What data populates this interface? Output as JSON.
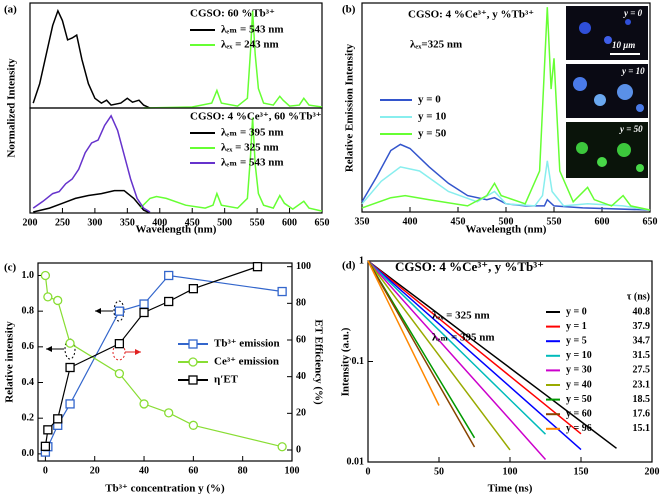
{
  "chart_data": [
    {
      "type": "line",
      "panel": "(a)",
      "title": "CGSO: 60 %Tb³⁺",
      "ylabel": "Normalized Intensity",
      "xlim": [
        200,
        650
      ],
      "ylim": [
        0,
        1.08
      ],
      "legend": "upper right",
      "series": [
        {
          "name": "λₑₘ = 543 nm",
          "color": "#000000",
          "x": [
            205,
            215,
            225,
            235,
            243,
            250,
            258,
            265,
            272,
            280,
            290,
            300,
            310,
            318,
            325,
            340,
            350,
            358,
            368,
            375,
            385
          ],
          "values": [
            0.05,
            0.25,
            0.55,
            0.85,
            1.0,
            0.9,
            0.7,
            0.72,
            0.75,
            0.5,
            0.25,
            0.1,
            0.05,
            0.08,
            0.03,
            0.05,
            0.1,
            0.06,
            0.08,
            0.03,
            0.0
          ]
        },
        {
          "name": "λₑₓ = 243 nm",
          "color": "#66ff33",
          "x": [
            375,
            450,
            480,
            488,
            495,
            520,
            535,
            540,
            543,
            547,
            552,
            560,
            575,
            585,
            590,
            600,
            615,
            622,
            630,
            650
          ],
          "values": [
            0.0,
            0.01,
            0.05,
            0.18,
            0.05,
            0.02,
            0.1,
            0.6,
            1.0,
            0.55,
            0.2,
            0.05,
            0.03,
            0.12,
            0.08,
            0.02,
            0.03,
            0.1,
            0.03,
            0.01
          ]
        }
      ]
    },
    {
      "type": "line",
      "title": "CGSO: 4 %Ce³⁺, 60 %Tb³⁺",
      "xlabel": "Wavelength (nm)",
      "xlim": [
        200,
        650
      ],
      "xticks": [
        200,
        250,
        300,
        350,
        400,
        450,
        500,
        550,
        600,
        650
      ],
      "ylim": [
        0,
        1.08
      ],
      "legend": "upper right",
      "series": [
        {
          "name": "λₑₘ = 395 nm",
          "color": "#000000",
          "x": [
            205,
            230,
            250,
            270,
            290,
            310,
            330,
            345,
            360,
            375,
            385
          ],
          "values": [
            0.01,
            0.05,
            0.1,
            0.15,
            0.18,
            0.2,
            0.23,
            0.23,
            0.15,
            0.03,
            0.0
          ]
        },
        {
          "name": "λₑₓ = 325 nm",
          "color": "#66ff33",
          "x": [
            370,
            385,
            395,
            410,
            440,
            470,
            482,
            488,
            495,
            520,
            535,
            540,
            543,
            547,
            552,
            560,
            575,
            585,
            592,
            605,
            622,
            630,
            650
          ],
          "values": [
            0.05,
            0.15,
            0.17,
            0.15,
            0.08,
            0.05,
            0.08,
            0.2,
            0.08,
            0.05,
            0.15,
            0.6,
            0.98,
            0.5,
            0.2,
            0.08,
            0.05,
            0.18,
            0.1,
            0.04,
            0.12,
            0.05,
            0.02
          ]
        },
        {
          "name": "λₑₘ = 543 nm",
          "color": "#6633cc",
          "x": [
            205,
            220,
            235,
            245,
            255,
            265,
            275,
            285,
            295,
            305,
            315,
            325,
            335,
            345,
            355,
            365,
            375,
            385
          ],
          "values": [
            0.05,
            0.12,
            0.2,
            0.22,
            0.3,
            0.35,
            0.45,
            0.62,
            0.72,
            0.75,
            0.9,
            1.0,
            0.85,
            0.6,
            0.35,
            0.15,
            0.05,
            0.01
          ]
        }
      ]
    },
    {
      "type": "line",
      "panel": "(b)",
      "title": "CGSO: 4 %Ce³⁺, y %Tb³⁺",
      "annotations": [
        "λₑₓ=325 nm"
      ],
      "ylabel": "Relative Emission Intensity",
      "xlabel": "Wavelength (nm)",
      "xlim": [
        350,
        650
      ],
      "xticks": [
        350,
        400,
        450,
        500,
        550,
        600,
        650
      ],
      "ylim": [
        0,
        1.02
      ],
      "legend": "upper left",
      "images": [
        {
          "label": "y = 0",
          "scale": "10 μm"
        },
        {
          "label": "y = 10"
        },
        {
          "label": "y = 50"
        }
      ],
      "series": [
        {
          "name": "y = 0",
          "color": "#3355cc",
          "x": [
            350,
            365,
            380,
            390,
            400,
            420,
            440,
            460,
            480,
            488,
            500,
            520,
            540,
            543,
            550,
            580,
            650
          ],
          "values": [
            0.05,
            0.17,
            0.3,
            0.33,
            0.31,
            0.22,
            0.14,
            0.08,
            0.06,
            0.07,
            0.04,
            0.03,
            0.03,
            0.06,
            0.03,
            0.02,
            0.01
          ]
        },
        {
          "name": "y = 10",
          "color": "#88eeee",
          "x": [
            350,
            370,
            390,
            410,
            440,
            470,
            488,
            500,
            530,
            538,
            543,
            548,
            560,
            585,
            622,
            650
          ],
          "values": [
            0.04,
            0.15,
            0.22,
            0.2,
            0.1,
            0.05,
            0.1,
            0.04,
            0.03,
            0.08,
            0.25,
            0.1,
            0.03,
            0.04,
            0.03,
            0.01
          ]
        },
        {
          "name": "y = 50",
          "color": "#66ff33",
          "x": [
            350,
            380,
            395,
            420,
            460,
            480,
            488,
            495,
            520,
            535,
            540,
            543,
            547,
            550,
            556,
            570,
            585,
            592,
            610,
            622,
            630,
            650
          ],
          "values": [
            0.02,
            0.07,
            0.08,
            0.06,
            0.03,
            0.08,
            0.14,
            0.08,
            0.04,
            0.2,
            0.7,
            1.0,
            0.6,
            0.75,
            0.2,
            0.05,
            0.12,
            0.06,
            0.03,
            0.08,
            0.03,
            0.01
          ]
        }
      ]
    },
    {
      "type": "line",
      "panel": "(c)",
      "xlabel": "Tb³⁺ concentration y (%)",
      "ylabel": "Relative intensity",
      "y2label": "ET Efficiency (%)",
      "xlim": [
        -3,
        100
      ],
      "xticks": [
        0,
        20,
        40,
        60,
        80,
        100
      ],
      "ylim": [
        -0.04,
        1.07
      ],
      "yticks": [
        {
          "value": 0,
          "label": "0.0"
        },
        0.2,
        0.4,
        0.6,
        0.8,
        {
          "value": 1,
          "label": "1.0"
        }
      ],
      "y2lim": [
        -6,
        102
      ],
      "y2ticks": [
        0,
        20,
        40,
        60,
        80,
        100
      ],
      "legend": "center right",
      "series": [
        {
          "name": "Tb³⁺ emission",
          "color": "#3366cc",
          "marker": "square",
          "x": [
            0,
            1,
            5,
            10,
            30,
            40,
            50,
            96
          ],
          "values": [
            0.01,
            0.04,
            0.16,
            0.28,
            0.8,
            0.84,
            1.0,
            0.91
          ]
        },
        {
          "name": "Ce³⁺ emission",
          "color": "#88dd33",
          "marker": "circle",
          "x": [
            0,
            1,
            5,
            10,
            30,
            40,
            50,
            60,
            96
          ],
          "values": [
            1.0,
            0.88,
            0.86,
            0.62,
            0.45,
            0.28,
            0.23,
            0.16,
            0.04
          ]
        },
        {
          "name": "η′ET",
          "color": "#000000",
          "marker": "square",
          "axis": "y2",
          "x": [
            0,
            1,
            5,
            10,
            30,
            40,
            50,
            60,
            86
          ],
          "values": [
            2,
            11,
            17,
            45,
            58,
            75,
            81,
            88,
            100
          ]
        }
      ]
    },
    {
      "type": "line",
      "panel": "(d)",
      "title": "CGSO: 4 %Ce³⁺, y %Tb³⁺",
      "annotations": [
        "λₑₓ = 325 nm",
        "λₑₘ = 395 nm"
      ],
      "xlabel": "Time (ns)",
      "ylabel": "Intensity (a.u.)",
      "yscale": "log",
      "xlim": [
        0,
        200
      ],
      "xticks": [
        0,
        50,
        100,
        150,
        200
      ],
      "ylim": [
        0.01,
        1
      ],
      "yticks": [
        0.01,
        0.1,
        1
      ],
      "legend": "upper right",
      "legend_title": "τ (ns)",
      "x": [
        0,
        25,
        50,
        75,
        100,
        125,
        150,
        175,
        200
      ],
      "series": [
        {
          "name": "y = 0",
          "tau": 40.8,
          "color": "#000000",
          "values": [
            1,
            0.542,
            0.294,
            0.159,
            0.0862,
            0.0467,
            0.0253,
            0.0137,
            null
          ]
        },
        {
          "name": "y = 1",
          "tau": 37.9,
          "color": "#ff0000",
          "values": [
            1,
            0.517,
            0.267,
            0.138,
            0.0714,
            0.037,
            0.0191,
            null,
            null
          ]
        },
        {
          "name": "y = 5",
          "tau": 34.7,
          "color": "#0000ff",
          "values": [
            1,
            0.486,
            0.237,
            0.115,
            0.056,
            0.0273,
            0.0133,
            null,
            null
          ]
        },
        {
          "name": "y = 10",
          "tau": 31.5,
          "color": "#00bbbb",
          "values": [
            1,
            0.452,
            0.205,
            0.0925,
            0.0418,
            0.0189,
            null,
            null,
            null
          ]
        },
        {
          "name": "y = 30",
          "tau": 27.5,
          "color": "#cc00cc",
          "values": [
            1,
            0.403,
            0.162,
            0.0654,
            0.0264,
            0.0106,
            null,
            null,
            null
          ]
        },
        {
          "name": "y = 40",
          "tau": 23.1,
          "color": "#99aa00",
          "values": [
            1,
            0.339,
            0.115,
            0.0389,
            0.0132,
            null,
            null,
            null,
            null
          ]
        },
        {
          "name": "y = 50",
          "tau": 18.5,
          "color": "#009900",
          "values": [
            1,
            0.259,
            0.067,
            0.0174,
            null,
            null,
            null,
            null,
            null
          ]
        },
        {
          "name": "y = 60",
          "tau": 17.6,
          "color": "#884400",
          "values": [
            1,
            0.242,
            0.0584,
            0.0141,
            null,
            null,
            null,
            null,
            null
          ]
        },
        {
          "name": "y = 96",
          "tau": 15.1,
          "color": "#ff8800",
          "values": [
            1,
            0.191,
            0.0365,
            null,
            null,
            null,
            null,
            null,
            null
          ]
        }
      ]
    }
  ]
}
